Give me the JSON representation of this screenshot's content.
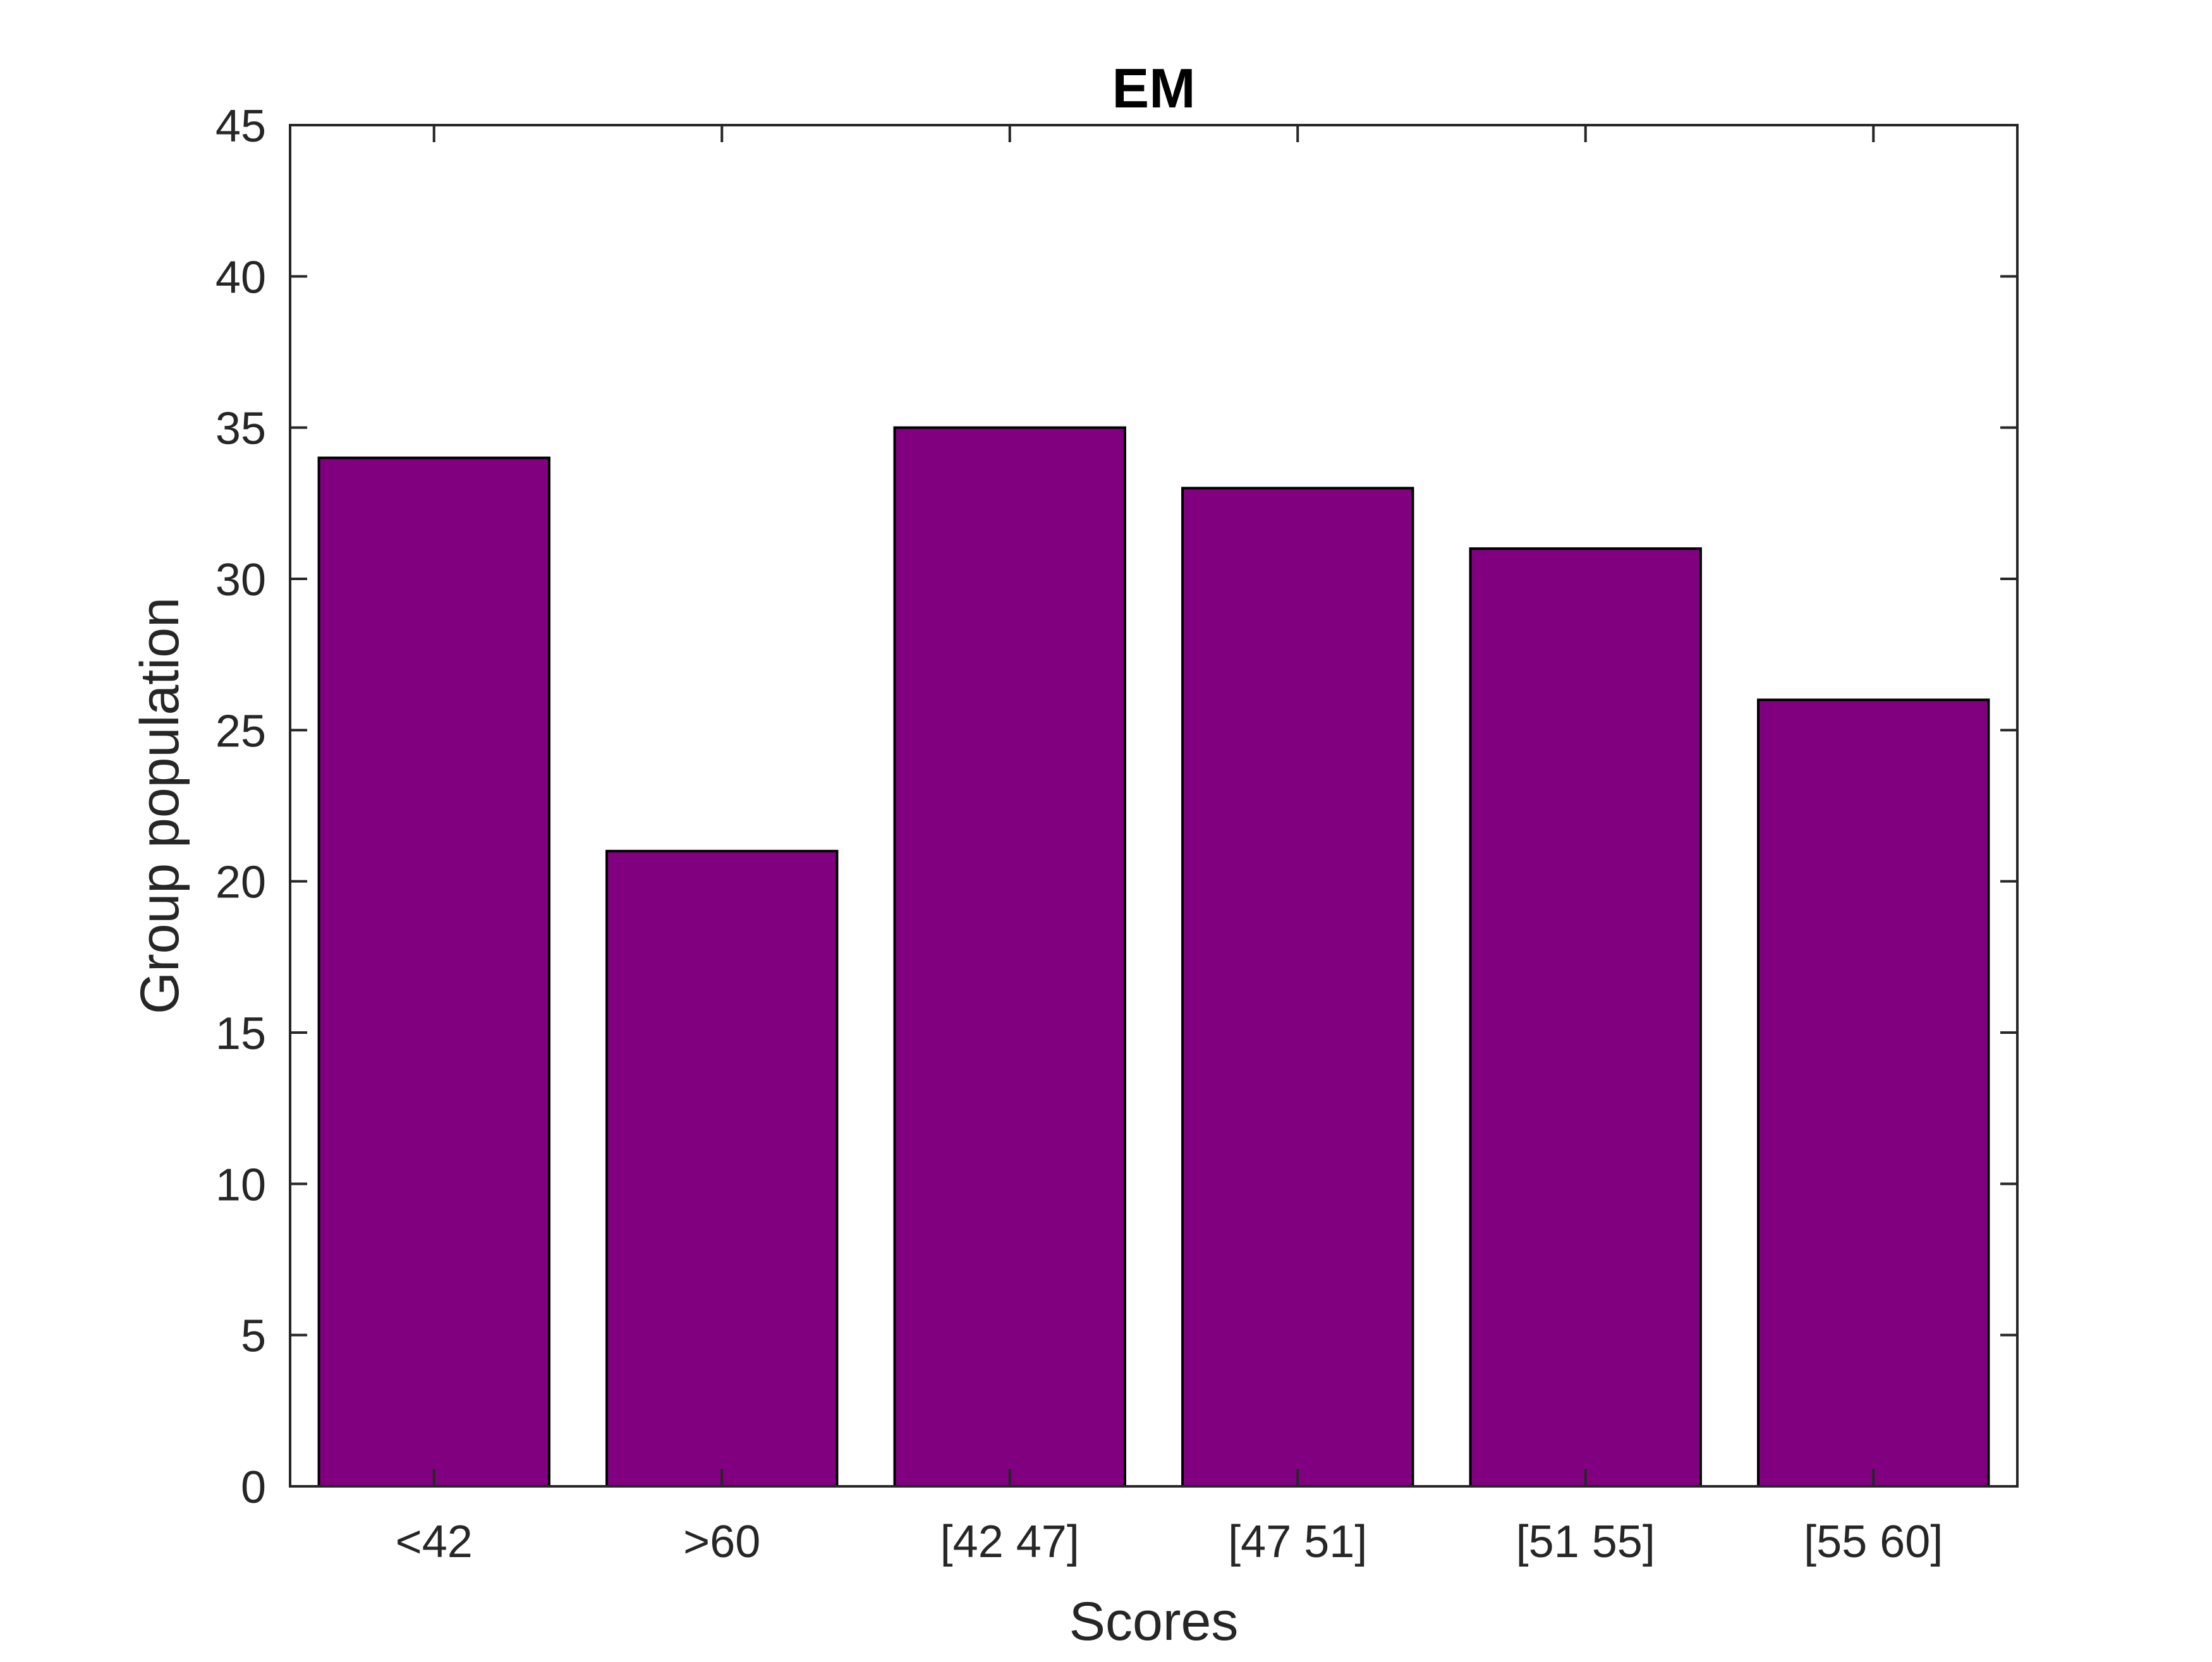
{
  "chart_data": {
    "type": "bar",
    "title": "EM",
    "xlabel": "Scores",
    "ylabel": "Group population",
    "categories": [
      "<42",
      ">60",
      "[42 47]",
      "[47 51]",
      "[51 55]",
      "[55 60]"
    ],
    "values": [
      34,
      21,
      35,
      33,
      31,
      26
    ],
    "ylim": [
      0,
      45
    ],
    "yticks": [
      0,
      5,
      10,
      15,
      20,
      25,
      30,
      35,
      40,
      45
    ],
    "ytick_labels": [
      "0",
      "5",
      "10",
      "15",
      "20",
      "25",
      "30",
      "35",
      "40",
      "45"
    ],
    "grid": false,
    "legend": "none",
    "bar_color": "#800080",
    "bar_edge_color": "#000000",
    "axis_color": "#262626"
  }
}
